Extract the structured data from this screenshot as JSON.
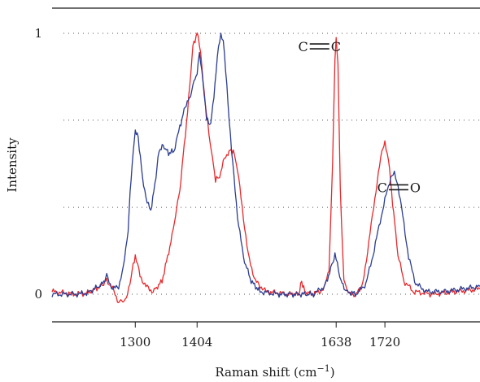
{
  "chart_data": {
    "type": "line",
    "xlabel": "Raman shift (cm",
    "xlabel_sup": "−1",
    "xlabel_close": ")",
    "ylabel": "Intensity",
    "xlim": [
      1160,
      1880
    ],
    "ylim": [
      -0.12,
      1.1
    ],
    "x_ticks": [
      {
        "value": 1300,
        "label": "1300"
      },
      {
        "value": 1404,
        "label": "1404"
      },
      {
        "value": 1638,
        "label": "1638"
      },
      {
        "value": 1720,
        "label": "1720"
      }
    ],
    "y_ticks": [
      {
        "value": 0,
        "label": "0"
      },
      {
        "value": 1,
        "label": "1"
      }
    ],
    "gridlines_y": [
      0,
      0.333,
      0.667,
      1
    ],
    "grid_style": "dotted horizontal",
    "annotations": [
      {
        "text_left": "C",
        "text_right": "C",
        "bond": "double",
        "x": 1610,
        "y": 0.95
      },
      {
        "text_left": "C",
        "text_right": "O",
        "bond": "double",
        "x": 1743,
        "y": 0.41
      }
    ],
    "series": [
      {
        "color": "#e8282b",
        "points": [
          [
            1160,
            0.01
          ],
          [
            1200,
            0.0
          ],
          [
            1220,
            0.005
          ],
          [
            1245,
            0.035
          ],
          [
            1252,
            0.055
          ],
          [
            1262,
            0.02
          ],
          [
            1272,
            -0.03
          ],
          [
            1285,
            -0.02
          ],
          [
            1293,
            0.07
          ],
          [
            1300,
            0.15
          ],
          [
            1308,
            0.07
          ],
          [
            1318,
            0.03
          ],
          [
            1330,
            0.01
          ],
          [
            1345,
            0.05
          ],
          [
            1360,
            0.2
          ],
          [
            1375,
            0.4
          ],
          [
            1388,
            0.7
          ],
          [
            1397,
            0.95
          ],
          [
            1404,
            1.0
          ],
          [
            1410,
            0.93
          ],
          [
            1418,
            0.72
          ],
          [
            1428,
            0.55
          ],
          [
            1435,
            0.44
          ],
          [
            1442,
            0.45
          ],
          [
            1450,
            0.52
          ],
          [
            1458,
            0.55
          ],
          [
            1465,
            0.55
          ],
          [
            1472,
            0.48
          ],
          [
            1480,
            0.33
          ],
          [
            1490,
            0.15
          ],
          [
            1502,
            0.05
          ],
          [
            1520,
            0.01
          ],
          [
            1560,
            0.0
          ],
          [
            1575,
            0.0
          ],
          [
            1580,
            0.05
          ],
          [
            1585,
            0.01
          ],
          [
            1600,
            0.0
          ],
          [
            1618,
            0.02
          ],
          [
            1626,
            0.1
          ],
          [
            1632,
            0.5
          ],
          [
            1636,
            0.9
          ],
          [
            1638,
            0.99
          ],
          [
            1641,
            0.88
          ],
          [
            1645,
            0.4
          ],
          [
            1651,
            0.05
          ],
          [
            1660,
            0.0
          ],
          [
            1672,
            0.0
          ],
          [
            1683,
            0.04
          ],
          [
            1693,
            0.2
          ],
          [
            1705,
            0.4
          ],
          [
            1715,
            0.55
          ],
          [
            1720,
            0.58
          ],
          [
            1726,
            0.52
          ],
          [
            1733,
            0.35
          ],
          [
            1742,
            0.15
          ],
          [
            1752,
            0.05
          ],
          [
            1768,
            0.01
          ],
          [
            1800,
            0.0
          ],
          [
            1840,
            0.01
          ],
          [
            1880,
            0.02
          ]
        ]
      },
      {
        "color": "#2b3d91",
        "points": [
          [
            1160,
            0.0
          ],
          [
            1200,
            0.0
          ],
          [
            1220,
            0.005
          ],
          [
            1245,
            0.04
          ],
          [
            1252,
            0.07
          ],
          [
            1262,
            0.02
          ],
          [
            1272,
            0.03
          ],
          [
            1280,
            0.1
          ],
          [
            1288,
            0.25
          ],
          [
            1293,
            0.45
          ],
          [
            1300,
            0.63
          ],
          [
            1305,
            0.6
          ],
          [
            1312,
            0.45
          ],
          [
            1320,
            0.35
          ],
          [
            1326,
            0.32
          ],
          [
            1333,
            0.42
          ],
          [
            1340,
            0.55
          ],
          [
            1347,
            0.57
          ],
          [
            1356,
            0.54
          ],
          [
            1365,
            0.55
          ],
          [
            1375,
            0.64
          ],
          [
            1384,
            0.72
          ],
          [
            1391,
            0.75
          ],
          [
            1397,
            0.8
          ],
          [
            1404,
            0.85
          ],
          [
            1408,
            0.92
          ],
          [
            1414,
            0.82
          ],
          [
            1420,
            0.67
          ],
          [
            1427,
            0.65
          ],
          [
            1434,
            0.8
          ],
          [
            1440,
            0.95
          ],
          [
            1444,
            1.0
          ],
          [
            1448,
            0.97
          ],
          [
            1454,
            0.8
          ],
          [
            1462,
            0.55
          ],
          [
            1472,
            0.3
          ],
          [
            1482,
            0.14
          ],
          [
            1495,
            0.05
          ],
          [
            1510,
            0.01
          ],
          [
            1540,
            0.0
          ],
          [
            1575,
            0.0
          ],
          [
            1600,
            0.0
          ],
          [
            1618,
            0.03
          ],
          [
            1627,
            0.08
          ],
          [
            1633,
            0.13
          ],
          [
            1636,
            0.15
          ],
          [
            1640,
            0.12
          ],
          [
            1646,
            0.05
          ],
          [
            1655,
            0.01
          ],
          [
            1672,
            0.0
          ],
          [
            1688,
            0.04
          ],
          [
            1700,
            0.15
          ],
          [
            1712,
            0.28
          ],
          [
            1722,
            0.38
          ],
          [
            1730,
            0.45
          ],
          [
            1736,
            0.46
          ],
          [
            1742,
            0.42
          ],
          [
            1750,
            0.3
          ],
          [
            1760,
            0.14
          ],
          [
            1772,
            0.04
          ],
          [
            1790,
            0.01
          ],
          [
            1820,
            0.01
          ],
          [
            1850,
            0.02
          ],
          [
            1880,
            0.03
          ]
        ]
      }
    ]
  }
}
